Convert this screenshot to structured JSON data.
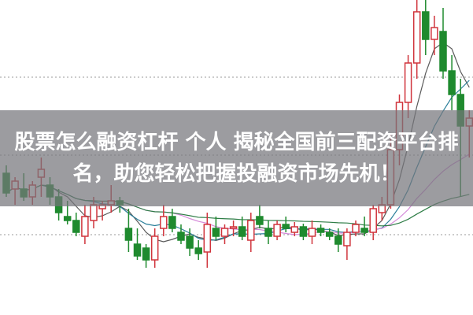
{
  "title": {
    "line1": "股票怎么融资杠杆 个人 揭秘全国前三配资平台排",
    "line2": "名，助您轻松把握投融资市场先机！"
  },
  "chart_data": {
    "type": "candlestick",
    "title": "",
    "xlabel": "",
    "ylabel": "",
    "ylim": [
      0,
      400
    ],
    "grid": "dotted horizontal",
    "gridlines": [
      102,
      203,
      302
    ],
    "colors": {
      "up": "#d0343c",
      "down": "#1f8a2e",
      "ma5": "#5a5a5a",
      "ma10": "#2a7f9a",
      "ma20": "#d58ad9",
      "ma60": "#2e7d46",
      "grid": "#999999"
    },
    "moving_averages": [
      5,
      10,
      20,
      40
    ],
    "candles": [
      [
        180,
        190,
        150,
        155
      ],
      [
        160,
        175,
        140,
        170
      ],
      [
        160,
        180,
        145,
        150
      ],
      [
        150,
        170,
        140,
        165
      ],
      [
        175,
        200,
        150,
        185
      ],
      [
        165,
        175,
        140,
        150
      ],
      [
        150,
        160,
        120,
        130
      ],
      [
        125,
        145,
        115,
        120
      ],
      [
        120,
        130,
        100,
        105
      ],
      [
        100,
        140,
        90,
        125
      ],
      [
        120,
        150,
        110,
        140
      ],
      [
        135,
        145,
        120,
        140
      ],
      [
        140,
        165,
        130,
        145
      ],
      [
        145,
        150,
        130,
        140
      ],
      [
        110,
        135,
        80,
        95
      ],
      [
        90,
        110,
        70,
        75
      ],
      [
        85,
        90,
        60,
        70
      ],
      [
        70,
        110,
        60,
        100
      ],
      [
        110,
        140,
        100,
        125
      ],
      [
        125,
        135,
        105,
        110
      ],
      [
        105,
        115,
        90,
        95
      ],
      [
        100,
        110,
        75,
        85
      ],
      [
        85,
        95,
        70,
        78
      ],
      [
        80,
        130,
        60,
        115
      ],
      [
        110,
        125,
        95,
        100
      ],
      [
        100,
        115,
        90,
        110
      ],
      [
        110,
        120,
        100,
        112
      ],
      [
        112,
        125,
        95,
        100
      ],
      [
        95,
        130,
        80,
        120
      ],
      [
        125,
        140,
        110,
        115
      ],
      [
        110,
        120,
        90,
        100
      ],
      [
        100,
        120,
        95,
        115
      ],
      [
        115,
        125,
        105,
        110
      ],
      [
        105,
        118,
        100,
        112
      ],
      [
        112,
        116,
        95,
        100
      ],
      [
        100,
        120,
        90,
        110
      ],
      [
        110,
        115,
        100,
        105
      ],
      [
        105,
        110,
        95,
        100
      ],
      [
        100,
        110,
        80,
        90
      ],
      [
        88,
        110,
        70,
        105
      ],
      [
        105,
        120,
        100,
        115
      ],
      [
        110,
        125,
        100,
        105
      ],
      [
        105,
        140,
        95,
        135
      ],
      [
        130,
        150,
        120,
        140
      ],
      [
        140,
        230,
        135,
        210
      ],
      [
        210,
        280,
        190,
        270
      ],
      [
        270,
        330,
        250,
        320
      ],
      [
        320,
        400,
        300,
        385
      ],
      [
        385,
        400,
        330,
        350
      ],
      [
        350,
        380,
        330,
        365
      ],
      [
        360,
        390,
        300,
        310
      ],
      [
        310,
        330,
        260,
        280
      ],
      [
        280,
        300,
        150,
        240
      ],
      [
        240,
        260,
        200,
        250
      ]
    ]
  }
}
